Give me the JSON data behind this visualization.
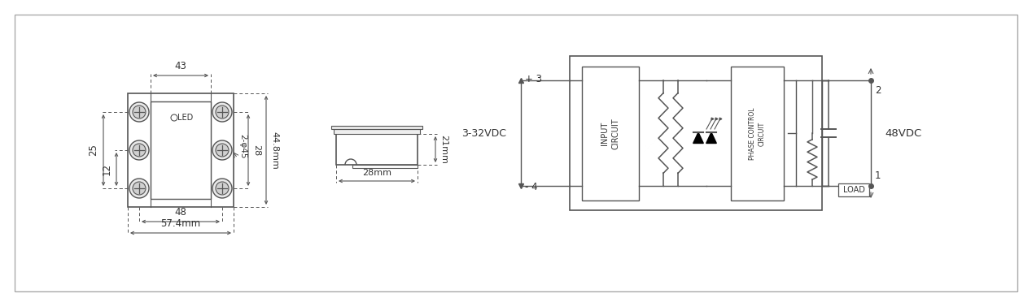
{
  "fig_bg": "#ffffff",
  "lc": "#555555",
  "tc": "#333333",
  "dim_43": "43",
  "dim_48": "48",
  "dim_574": "57.4mm",
  "dim_25": "25",
  "dim_12": "12",
  "dim_28": "28",
  "dim_448": "44.8mm",
  "dim_2o45": "2-φ45",
  "dim_21": "21mm",
  "dim_28mm": "28mm",
  "label_led": "LED",
  "label_load": "LOAD",
  "label_input": "INPUT\nCIRCUIT",
  "label_phase": "PHASE CONTROL\nCIRCUIT",
  "label_3_32": "3-32VDC",
  "label_48": "48VDC",
  "label_minus4": "- 4",
  "label_plus3": "+ 3",
  "label_1": "1",
  "label_2": "2"
}
